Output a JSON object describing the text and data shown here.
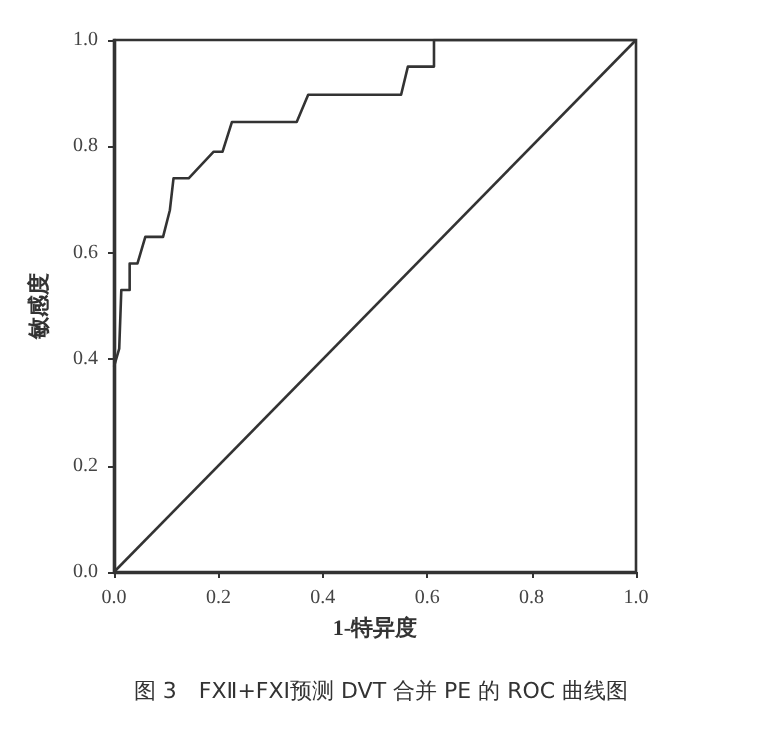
{
  "chart_data": {
    "type": "line",
    "xlabel": "1-特异度",
    "ylabel": "敏感度",
    "annotations": [
      "图 3　FXⅡ+FXI预测 DVT 合并 PE 的 ROC 曲线图"
    ],
    "xlim": [
      0,
      1
    ],
    "ylim": [
      0,
      1
    ],
    "xticks": [
      {
        "value": 0,
        "label": "0.0"
      },
      {
        "value": 0.2,
        "label": "0.2"
      },
      {
        "value": 0.4,
        "label": "0.4"
      },
      {
        "value": 0.6,
        "label": "0.6"
      },
      {
        "value": 0.8,
        "label": "0.8"
      },
      {
        "value": 1,
        "label": "1.0"
      }
    ],
    "yticks": [
      {
        "value": 0,
        "label": "0.0"
      },
      {
        "value": 0.2,
        "label": "0.2"
      },
      {
        "value": 0.4,
        "label": "0.4"
      },
      {
        "value": 0.6,
        "label": "0.6"
      },
      {
        "value": 0.8,
        "label": "0.8"
      },
      {
        "value": 1,
        "label": "1.0"
      }
    ],
    "grid": false,
    "marker": "none",
    "line_style": "solid",
    "series": [
      {
        "color": "#333333",
        "x": [
          0,
          0.01,
          0.014,
          0.03,
          0.03,
          0.045,
          0.06,
          0.094,
          0.107,
          0.114,
          0.143,
          0.191,
          0.208,
          0.226,
          0.35,
          0.372,
          0.55,
          0.563,
          0.613,
          0.613,
          1
        ],
        "values": [
          0.386,
          0.42,
          0.53,
          0.53,
          0.58,
          0.58,
          0.63,
          0.63,
          0.68,
          0.74,
          0.74,
          0.79,
          0.79,
          0.846,
          0.846,
          0.897,
          0.897,
          0.95,
          0.95,
          1,
          1
        ]
      },
      {
        "color": "#333333",
        "x": [
          0,
          1
        ],
        "values": [
          0,
          1
        ]
      }
    ]
  }
}
